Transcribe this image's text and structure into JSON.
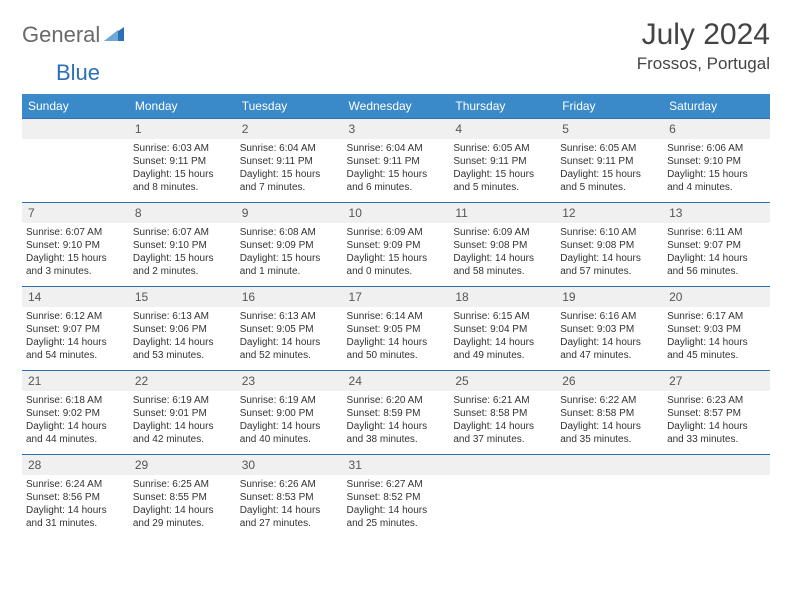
{
  "brand": {
    "part1": "General",
    "part2": "Blue"
  },
  "title": "July 2024",
  "location": "Frossos, Portugal",
  "colors": {
    "headerBar": "#3a89c9",
    "rowBorder": "#2d6fb5",
    "dayNumBg": "#f0f0f0",
    "logoBlue": "#2d6fb5",
    "logoGray": "#6a6a6a"
  },
  "dow": [
    "Sunday",
    "Monday",
    "Tuesday",
    "Wednesday",
    "Thursday",
    "Friday",
    "Saturday"
  ],
  "weeks": [
    [
      {
        "n": "",
        "lines": []
      },
      {
        "n": "1",
        "lines": [
          "Sunrise: 6:03 AM",
          "Sunset: 9:11 PM",
          "Daylight: 15 hours",
          "and 8 minutes."
        ]
      },
      {
        "n": "2",
        "lines": [
          "Sunrise: 6:04 AM",
          "Sunset: 9:11 PM",
          "Daylight: 15 hours",
          "and 7 minutes."
        ]
      },
      {
        "n": "3",
        "lines": [
          "Sunrise: 6:04 AM",
          "Sunset: 9:11 PM",
          "Daylight: 15 hours",
          "and 6 minutes."
        ]
      },
      {
        "n": "4",
        "lines": [
          "Sunrise: 6:05 AM",
          "Sunset: 9:11 PM",
          "Daylight: 15 hours",
          "and 5 minutes."
        ]
      },
      {
        "n": "5",
        "lines": [
          "Sunrise: 6:05 AM",
          "Sunset: 9:11 PM",
          "Daylight: 15 hours",
          "and 5 minutes."
        ]
      },
      {
        "n": "6",
        "lines": [
          "Sunrise: 6:06 AM",
          "Sunset: 9:10 PM",
          "Daylight: 15 hours",
          "and 4 minutes."
        ]
      }
    ],
    [
      {
        "n": "7",
        "lines": [
          "Sunrise: 6:07 AM",
          "Sunset: 9:10 PM",
          "Daylight: 15 hours",
          "and 3 minutes."
        ]
      },
      {
        "n": "8",
        "lines": [
          "Sunrise: 6:07 AM",
          "Sunset: 9:10 PM",
          "Daylight: 15 hours",
          "and 2 minutes."
        ]
      },
      {
        "n": "9",
        "lines": [
          "Sunrise: 6:08 AM",
          "Sunset: 9:09 PM",
          "Daylight: 15 hours",
          "and 1 minute."
        ]
      },
      {
        "n": "10",
        "lines": [
          "Sunrise: 6:09 AM",
          "Sunset: 9:09 PM",
          "Daylight: 15 hours",
          "and 0 minutes."
        ]
      },
      {
        "n": "11",
        "lines": [
          "Sunrise: 6:09 AM",
          "Sunset: 9:08 PM",
          "Daylight: 14 hours",
          "and 58 minutes."
        ]
      },
      {
        "n": "12",
        "lines": [
          "Sunrise: 6:10 AM",
          "Sunset: 9:08 PM",
          "Daylight: 14 hours",
          "and 57 minutes."
        ]
      },
      {
        "n": "13",
        "lines": [
          "Sunrise: 6:11 AM",
          "Sunset: 9:07 PM",
          "Daylight: 14 hours",
          "and 56 minutes."
        ]
      }
    ],
    [
      {
        "n": "14",
        "lines": [
          "Sunrise: 6:12 AM",
          "Sunset: 9:07 PM",
          "Daylight: 14 hours",
          "and 54 minutes."
        ]
      },
      {
        "n": "15",
        "lines": [
          "Sunrise: 6:13 AM",
          "Sunset: 9:06 PM",
          "Daylight: 14 hours",
          "and 53 minutes."
        ]
      },
      {
        "n": "16",
        "lines": [
          "Sunrise: 6:13 AM",
          "Sunset: 9:05 PM",
          "Daylight: 14 hours",
          "and 52 minutes."
        ]
      },
      {
        "n": "17",
        "lines": [
          "Sunrise: 6:14 AM",
          "Sunset: 9:05 PM",
          "Daylight: 14 hours",
          "and 50 minutes."
        ]
      },
      {
        "n": "18",
        "lines": [
          "Sunrise: 6:15 AM",
          "Sunset: 9:04 PM",
          "Daylight: 14 hours",
          "and 49 minutes."
        ]
      },
      {
        "n": "19",
        "lines": [
          "Sunrise: 6:16 AM",
          "Sunset: 9:03 PM",
          "Daylight: 14 hours",
          "and 47 minutes."
        ]
      },
      {
        "n": "20",
        "lines": [
          "Sunrise: 6:17 AM",
          "Sunset: 9:03 PM",
          "Daylight: 14 hours",
          "and 45 minutes."
        ]
      }
    ],
    [
      {
        "n": "21",
        "lines": [
          "Sunrise: 6:18 AM",
          "Sunset: 9:02 PM",
          "Daylight: 14 hours",
          "and 44 minutes."
        ]
      },
      {
        "n": "22",
        "lines": [
          "Sunrise: 6:19 AM",
          "Sunset: 9:01 PM",
          "Daylight: 14 hours",
          "and 42 minutes."
        ]
      },
      {
        "n": "23",
        "lines": [
          "Sunrise: 6:19 AM",
          "Sunset: 9:00 PM",
          "Daylight: 14 hours",
          "and 40 minutes."
        ]
      },
      {
        "n": "24",
        "lines": [
          "Sunrise: 6:20 AM",
          "Sunset: 8:59 PM",
          "Daylight: 14 hours",
          "and 38 minutes."
        ]
      },
      {
        "n": "25",
        "lines": [
          "Sunrise: 6:21 AM",
          "Sunset: 8:58 PM",
          "Daylight: 14 hours",
          "and 37 minutes."
        ]
      },
      {
        "n": "26",
        "lines": [
          "Sunrise: 6:22 AM",
          "Sunset: 8:58 PM",
          "Daylight: 14 hours",
          "and 35 minutes."
        ]
      },
      {
        "n": "27",
        "lines": [
          "Sunrise: 6:23 AM",
          "Sunset: 8:57 PM",
          "Daylight: 14 hours",
          "and 33 minutes."
        ]
      }
    ],
    [
      {
        "n": "28",
        "lines": [
          "Sunrise: 6:24 AM",
          "Sunset: 8:56 PM",
          "Daylight: 14 hours",
          "and 31 minutes."
        ]
      },
      {
        "n": "29",
        "lines": [
          "Sunrise: 6:25 AM",
          "Sunset: 8:55 PM",
          "Daylight: 14 hours",
          "and 29 minutes."
        ]
      },
      {
        "n": "30",
        "lines": [
          "Sunrise: 6:26 AM",
          "Sunset: 8:53 PM",
          "Daylight: 14 hours",
          "and 27 minutes."
        ]
      },
      {
        "n": "31",
        "lines": [
          "Sunrise: 6:27 AM",
          "Sunset: 8:52 PM",
          "Daylight: 14 hours",
          "and 25 minutes."
        ]
      },
      {
        "n": "",
        "lines": []
      },
      {
        "n": "",
        "lines": []
      },
      {
        "n": "",
        "lines": []
      }
    ]
  ]
}
